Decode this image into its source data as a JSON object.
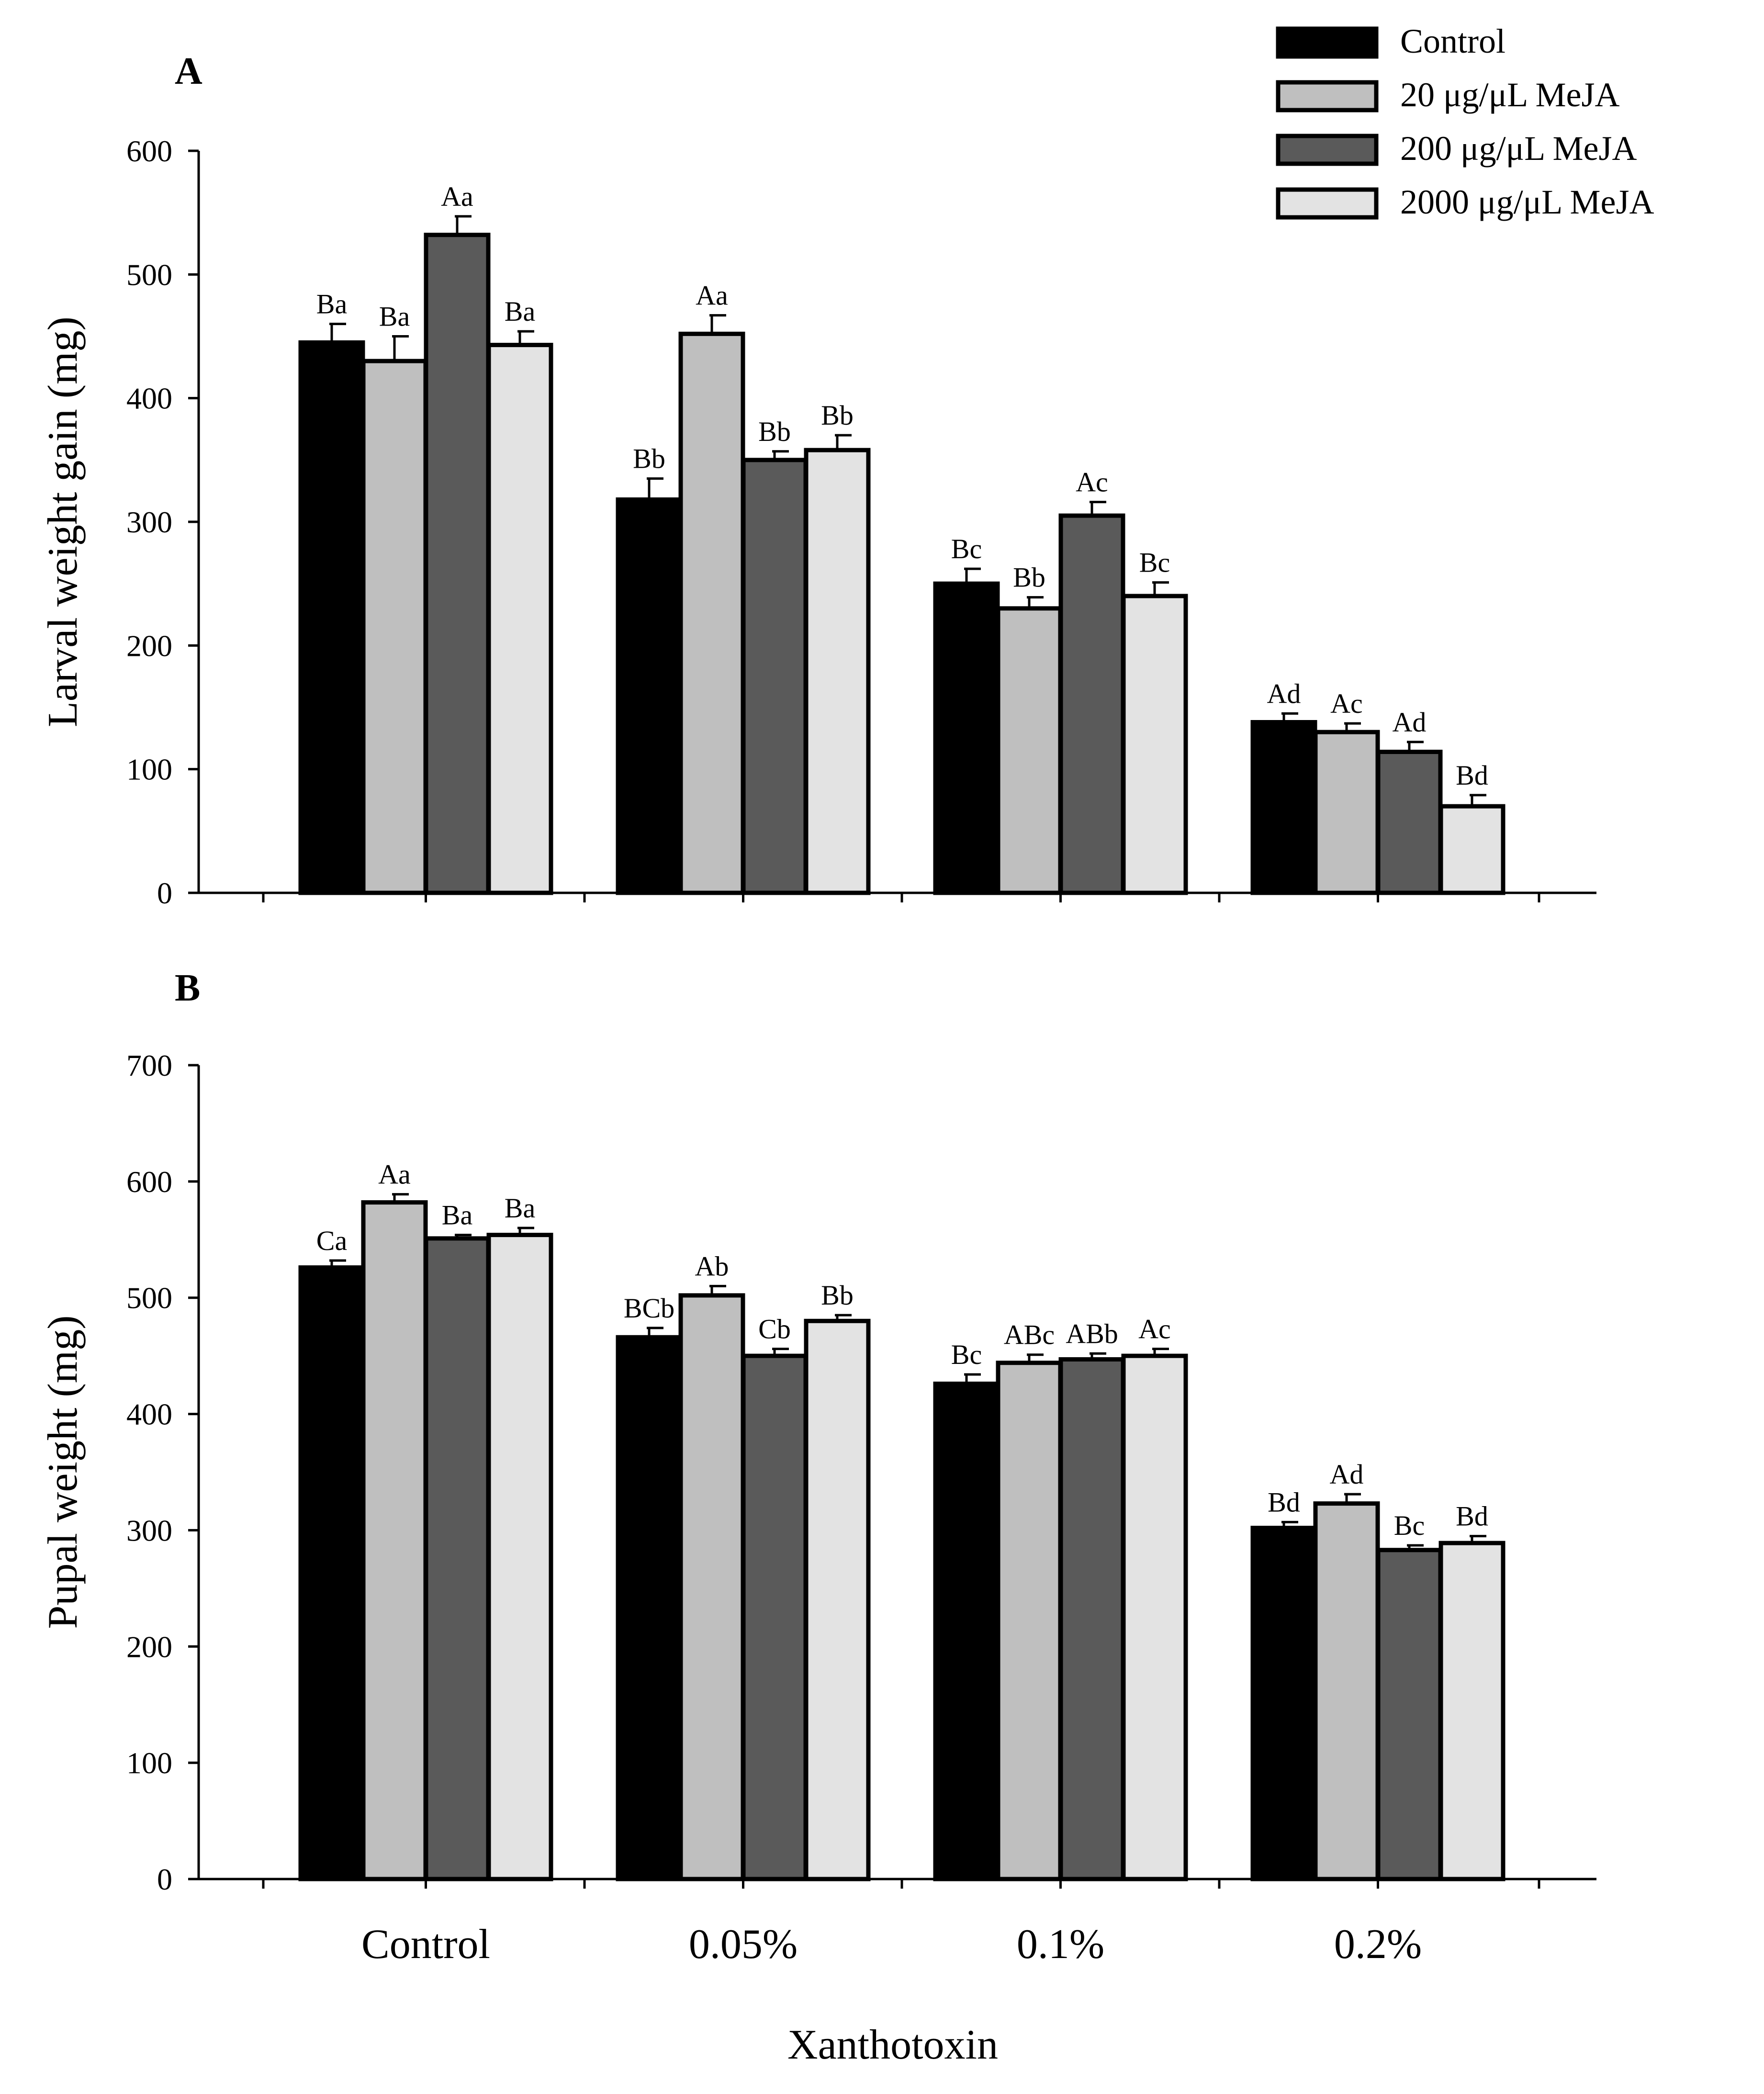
{
  "legend": [
    {
      "name": "Control",
      "color": "#000000"
    },
    {
      "name": "20 μg/μL MeJA",
      "color": "#bfbfbf"
    },
    {
      "name": "200 μg/μL MeJA",
      "color": "#5a5a5a"
    },
    {
      "name": "2000 μg/μL MeJA",
      "color": "#e3e3e3"
    }
  ],
  "x_axis": {
    "categories": [
      "Control",
      "0.05%",
      "0.1%",
      "0.2%"
    ],
    "title": "Xanthotoxin"
  },
  "chart_data": [
    {
      "panel": "A",
      "type": "bar",
      "ylabel": "Larval weight gain (mg)",
      "ylim": [
        0,
        600
      ],
      "yticks": [
        0,
        100,
        200,
        300,
        400,
        500,
        600
      ],
      "categories": [
        "Control",
        "0.05%",
        "0.1%",
        "0.2%"
      ],
      "series": [
        {
          "name": "Control",
          "values": [
            445,
            318,
            250,
            138
          ],
          "errors": [
            15,
            17,
            12,
            7
          ],
          "labels": [
            "Ba",
            "Bb",
            "Bc",
            "Ad"
          ]
        },
        {
          "name": "20 μg/μL MeJA",
          "values": [
            430,
            452,
            230,
            130
          ],
          "errors": [
            20,
            15,
            9,
            7
          ],
          "labels": [
            "Ba",
            "Aa",
            "Bb",
            "Ac"
          ]
        },
        {
          "name": "200 μg/μL MeJA",
          "values": [
            532,
            350,
            305,
            114
          ],
          "errors": [
            15,
            7,
            11,
            8
          ],
          "labels": [
            "Aa",
            "Bb",
            "Ac",
            "Ad"
          ]
        },
        {
          "name": "2000 μg/μL MeJA",
          "values": [
            443,
            358,
            240,
            70
          ],
          "errors": [
            11,
            12,
            11,
            9
          ],
          "labels": [
            "Ba",
            "Bb",
            "Bc",
            "Bd"
          ]
        }
      ]
    },
    {
      "panel": "B",
      "type": "bar",
      "ylabel": "Pupal weight  (mg)",
      "ylim": [
        0,
        700
      ],
      "yticks": [
        0,
        100,
        200,
        300,
        400,
        500,
        600,
        700
      ],
      "categories": [
        "Control",
        "0.05%",
        "0.1%",
        "0.2%"
      ],
      "series": [
        {
          "name": "Control",
          "values": [
            526,
            466,
            426,
            302
          ],
          "errors": [
            6,
            8,
            8,
            5
          ],
          "labels": [
            "Ca",
            "BCb",
            "Bc",
            "Bd"
          ]
        },
        {
          "name": "20 μg/μL MeJA",
          "values": [
            582,
            502,
            444,
            323
          ],
          "errors": [
            7,
            8,
            7,
            8
          ],
          "labels": [
            "Aa",
            "Ab",
            "ABc",
            "Ad"
          ]
        },
        {
          "name": "200 μg/μL MeJA",
          "values": [
            551,
            450,
            447,
            283
          ],
          "errors": [
            3,
            6,
            5,
            4
          ],
          "labels": [
            "Ba",
            "Cb",
            "ABb",
            "Bc"
          ]
        },
        {
          "name": "2000 μg/μL MeJA",
          "values": [
            554,
            480,
            450,
            289
          ],
          "errors": [
            6,
            5,
            6,
            6
          ],
          "labels": [
            "Ba",
            "Bb",
            "Ac",
            "Bd"
          ]
        }
      ]
    }
  ]
}
